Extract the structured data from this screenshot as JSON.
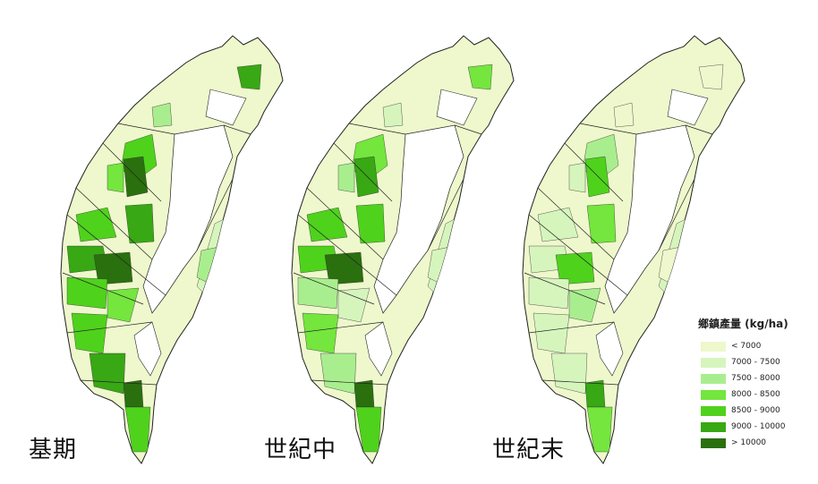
{
  "panels": [
    {
      "label": "基期",
      "offset_x": 0
    },
    {
      "label": "世紀中",
      "offset_x": 258
    },
    {
      "label": "世紀末",
      "offset_x": 516
    }
  ],
  "legend": {
    "title": "鄉鎮產量 (kg/ha)",
    "classes": [
      {
        "label": "< 7000",
        "color": "#eef8cc"
      },
      {
        "label": "7000 - 7500",
        "color": "#d6f5bd"
      },
      {
        "label": "7500 - 8000",
        "color": "#a9ee8e"
      },
      {
        "label": "8000 - 8500",
        "color": "#74e63e"
      },
      {
        "label": "8500 - 9000",
        "color": "#4fd21c"
      },
      {
        "label": "9000 - 10000",
        "color": "#38a814"
      },
      {
        "label": "> 10000",
        "color": "#2a700e"
      }
    ]
  }
}
